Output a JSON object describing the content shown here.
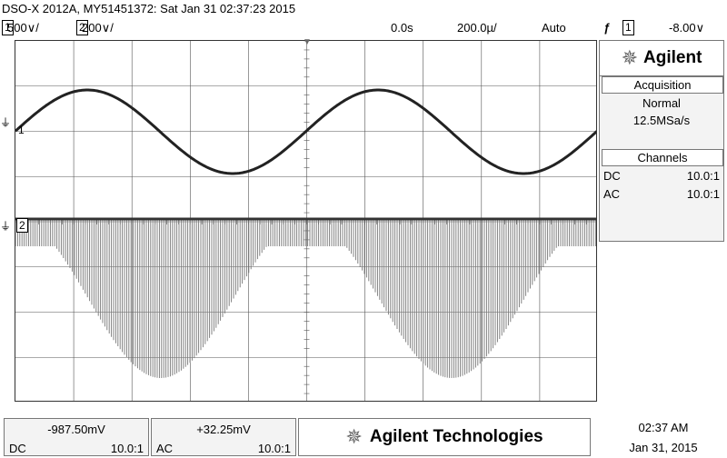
{
  "title": "DSO-X 2012A, MY51451372: Sat Jan 31 02:37:23 2015",
  "status": {
    "ch1_num": "1",
    "ch1_scale": "500∨/",
    "ch2_num": "2",
    "ch2_scale": "200∨/",
    "time_pos": "0.0s",
    "time_scale": "200.0µ/",
    "trigger_mode": "Auto",
    "trigger_icon": "trigger-edge-icon",
    "trigger_source": "1",
    "trigger_level": "-8.00∨"
  },
  "markers": {
    "ch1_label": "1",
    "ch2_label": "2"
  },
  "panel": {
    "brand": "Agilent",
    "acquisition_header": "Acquisition",
    "acquisition_mode": "Normal",
    "sample_rate": "12.5MSa/s",
    "channels_header": "Channels",
    "channels": [
      {
        "coupling": "DC",
        "probe": "10.0:1"
      },
      {
        "coupling": "AC",
        "probe": "10.0:1"
      }
    ]
  },
  "bottom": {
    "ch1": {
      "value": "-987.50mV",
      "coupling": "DC",
      "probe": "10.0:1"
    },
    "ch2": {
      "value": "+32.25mV",
      "coupling": "AC",
      "probe": "10.0:1"
    },
    "brand": "Agilent Technologies",
    "time": "02:37 AM",
    "date": "Jan 31, 2015"
  },
  "colors": {
    "trace1": "#222222",
    "trace2": "#777777",
    "grid": "#555555"
  }
}
